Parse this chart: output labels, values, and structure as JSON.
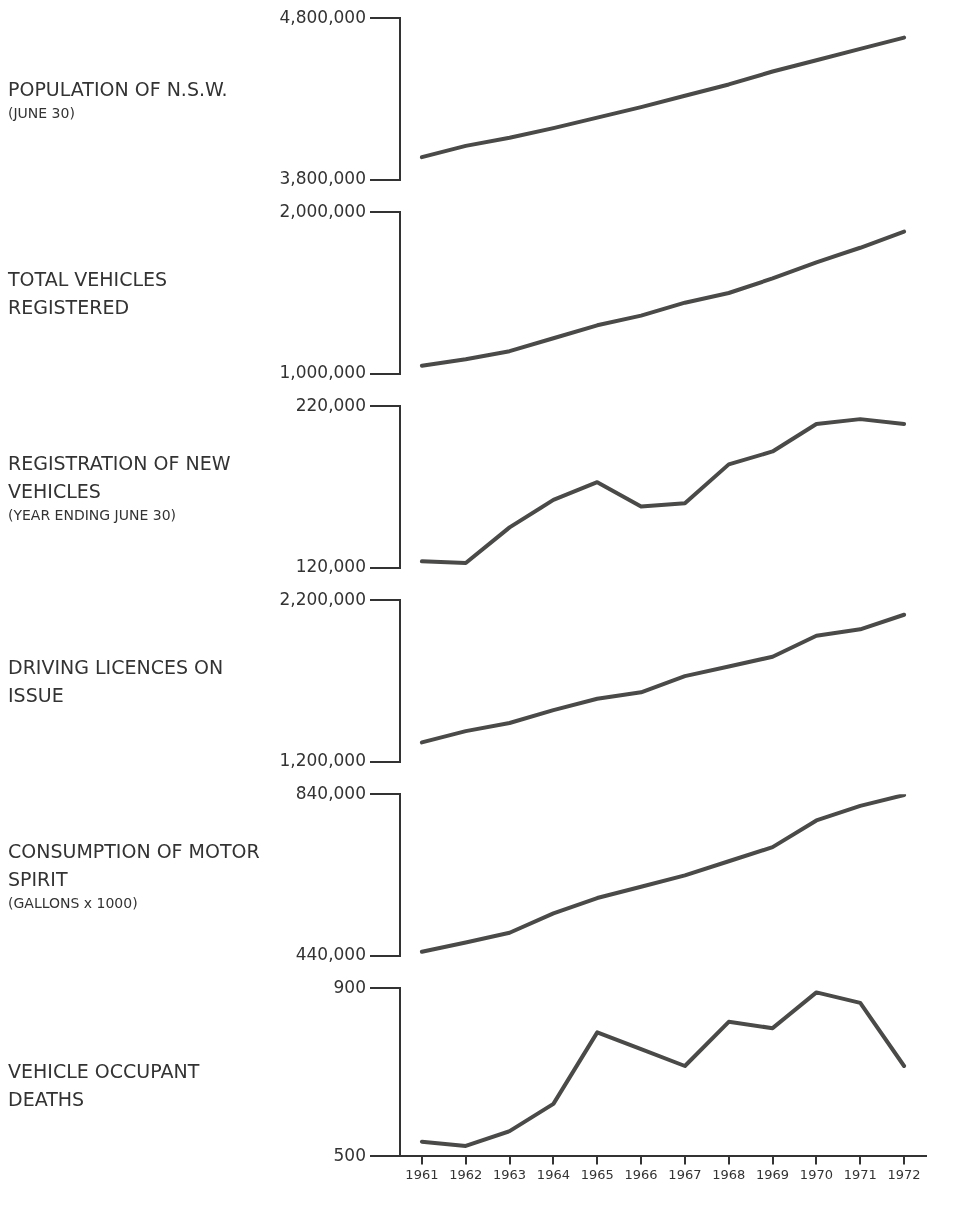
{
  "chart_data": [
    {
      "type": "line",
      "ylabel": "POPULATION OF N.S.W.",
      "annotations": [
        "(JUNE 30)"
      ],
      "categories": [
        "1961",
        "1962",
        "1963",
        "1964",
        "1965",
        "1966",
        "1967",
        "1968",
        "1969",
        "1970",
        "1971",
        "1972"
      ],
      "color": "#4a4a48",
      "values": [
        3940000,
        4010000,
        4060000,
        4120000,
        4185000,
        4250000,
        4320000,
        4390000,
        4470000,
        4540000,
        4610000,
        4680000
      ],
      "ylim": [
        3800000,
        4800000
      ],
      "yticks": [
        {
          "value": 3800000,
          "label": "3,800,000"
        },
        {
          "value": 4800000,
          "label": "4,800,000"
        }
      ],
      "grid": false,
      "legend": false,
      "tick_labels": "y"
    },
    {
      "type": "line",
      "ylabel": "TOTAL VEHICLES REGISTERED",
      "categories": [
        "1961",
        "1962",
        "1963",
        "1964",
        "1965",
        "1966",
        "1967",
        "1968",
        "1969",
        "1970",
        "1971",
        "1972"
      ],
      "color": "#4a4a48",
      "values": [
        1050000,
        1090000,
        1140000,
        1220000,
        1300000,
        1360000,
        1440000,
        1500000,
        1590000,
        1690000,
        1780000,
        1880000
      ],
      "ylim": [
        1000000,
        2000000
      ],
      "yticks": [
        {
          "value": 1000000,
          "label": "1,000,000"
        },
        {
          "value": 2000000,
          "label": "2,000,000"
        }
      ],
      "grid": false,
      "legend": false,
      "tick_labels": "y"
    },
    {
      "type": "line",
      "ylabel": "REGISTRATION OF NEW VEHICLES",
      "annotations": [
        "(YEAR ENDING JUNE 30)"
      ],
      "categories": [
        "1961",
        "1962",
        "1963",
        "1964",
        "1965",
        "1966",
        "1967",
        "1968",
        "1969",
        "1970",
        "1971",
        "1972"
      ],
      "color": "#4a4a48",
      "values": [
        124000,
        123000,
        145000,
        162000,
        173000,
        158000,
        160000,
        184000,
        192000,
        209000,
        212000,
        209000
      ],
      "ylim": [
        120000,
        220000
      ],
      "yticks": [
        {
          "value": 120000,
          "label": "120,000"
        },
        {
          "value": 220000,
          "label": "220,000"
        }
      ],
      "grid": false,
      "legend": false,
      "tick_labels": "y"
    },
    {
      "type": "line",
      "ylabel": "DRIVING LICENCES ON ISSUE",
      "categories": [
        "1961",
        "1962",
        "1963",
        "1964",
        "1965",
        "1966",
        "1967",
        "1968",
        "1969",
        "1970",
        "1971",
        "1972"
      ],
      "color": "#4a4a48",
      "values": [
        1320000,
        1390000,
        1440000,
        1520000,
        1590000,
        1630000,
        1730000,
        1790000,
        1850000,
        1980000,
        2020000,
        2110000
      ],
      "ylim": [
        1200000,
        2200000
      ],
      "yticks": [
        {
          "value": 1200000,
          "label": "1,200,000"
        },
        {
          "value": 2200000,
          "label": "2,200,000"
        }
      ],
      "grid": false,
      "legend": false,
      "tick_labels": "y"
    },
    {
      "type": "line",
      "ylabel": "CONSUMPTION OF MOTOR SPIRIT",
      "annotations": [
        "(GALLONS x 1000)"
      ],
      "categories": [
        "1961",
        "1962",
        "1963",
        "1964",
        "1965",
        "1966",
        "1967",
        "1968",
        "1969",
        "1970",
        "1971",
        "1972"
      ],
      "color": "#4a4a48",
      "values": [
        450000,
        473000,
        497000,
        545000,
        583000,
        611000,
        639000,
        674000,
        709000,
        775000,
        811000,
        838000
      ],
      "ylim": [
        440000,
        840000
      ],
      "yticks": [
        {
          "value": 440000,
          "label": "440,000"
        },
        {
          "value": 840000,
          "label": "840,000"
        }
      ],
      "grid": false,
      "legend": false,
      "tick_labels": "y"
    },
    {
      "type": "line",
      "ylabel": "VEHICLE OCCUPANT DEATHS",
      "categories": [
        "1961",
        "1962",
        "1963",
        "1964",
        "1965",
        "1966",
        "1967",
        "1968",
        "1969",
        "1970",
        "1971",
        "1972"
      ],
      "color": "#4a4a48",
      "values": [
        535,
        525,
        560,
        625,
        795,
        755,
        715,
        820,
        805,
        890,
        865,
        715
      ],
      "ylim": [
        500,
        900
      ],
      "yticks": [
        500,
        900
      ],
      "grid": false,
      "legend": false
    }
  ]
}
